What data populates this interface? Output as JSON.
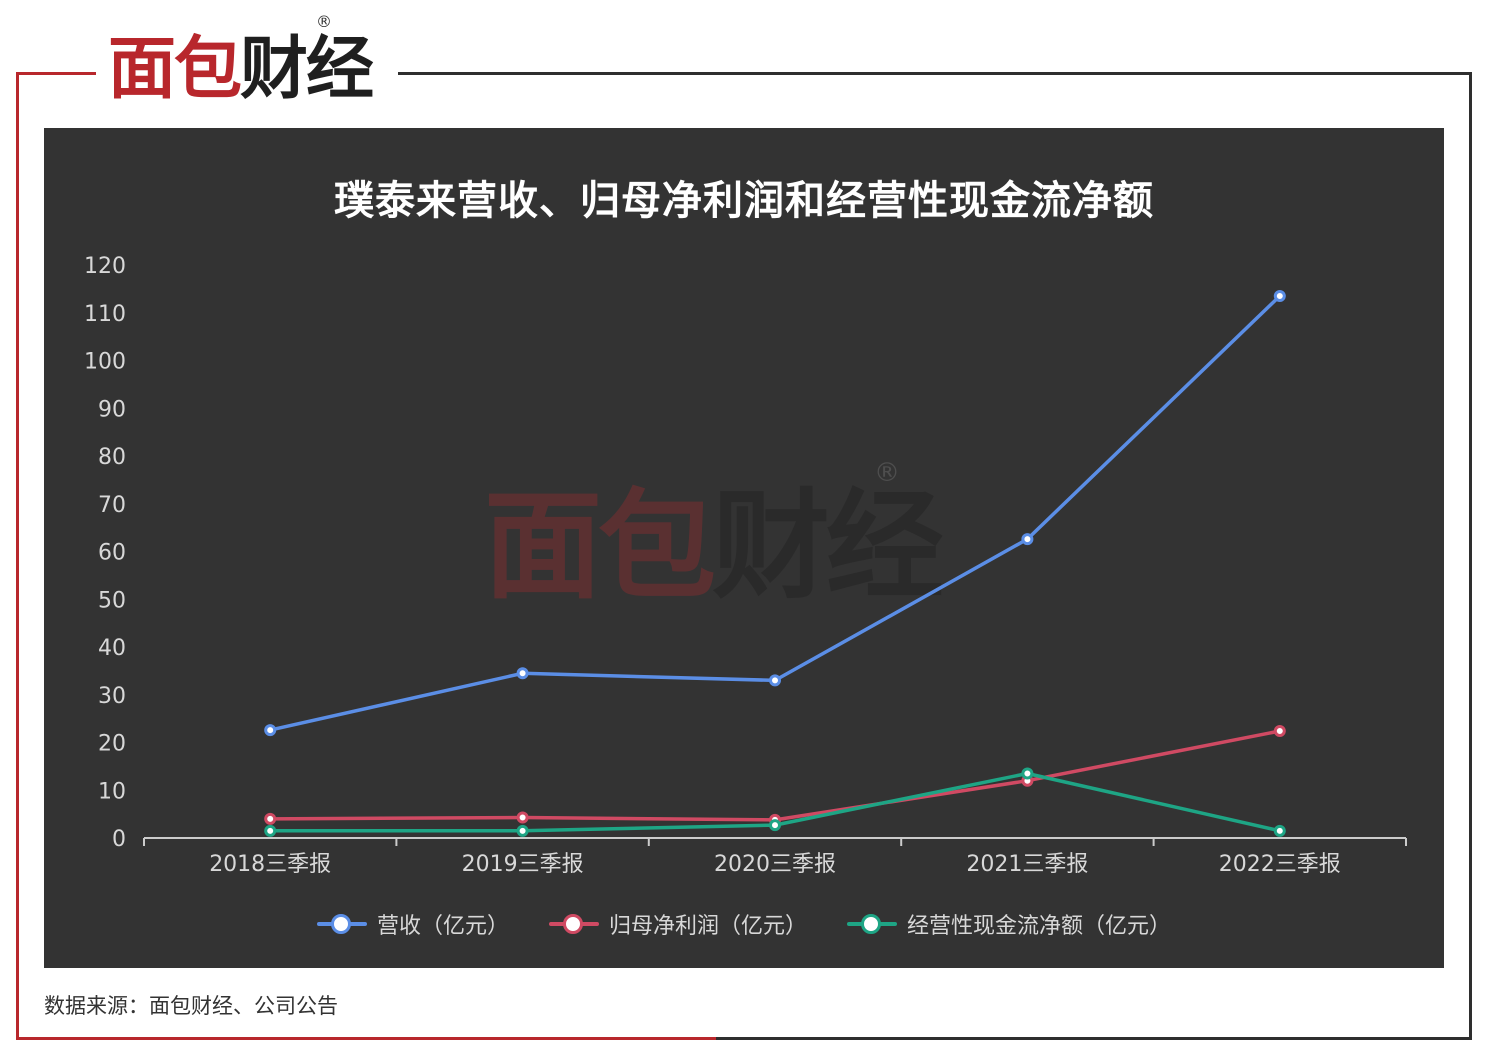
{
  "logo": {
    "part1": "面包",
    "part2": "财经",
    "reg": "®"
  },
  "watermark": {
    "part1": "面包",
    "part2": "财经",
    "reg": "®"
  },
  "source_text": "数据来源：面包财经、公司公告",
  "chart_data": {
    "type": "line",
    "title": "璞泰来营收、归母净利润和经营性现金流净额",
    "categories": [
      "2018三季报",
      "2019三季报",
      "2020三季报",
      "2021三季报",
      "2022三季报"
    ],
    "ylim": [
      0,
      120
    ],
    "yticks": [
      0,
      10,
      20,
      30,
      40,
      50,
      60,
      70,
      80,
      90,
      100,
      110,
      120
    ],
    "grid": false,
    "legend_position": "bottom",
    "series": [
      {
        "name": "营收（亿元）",
        "color": "#5b8ee6",
        "values": [
          22.6,
          34.5,
          33.0,
          62.6,
          113.5
        ]
      },
      {
        "name": "归母净利润（亿元）",
        "color": "#d04a63",
        "values": [
          4.0,
          4.3,
          3.8,
          12.0,
          22.4
        ]
      },
      {
        "name": "经营性现金流净额（亿元）",
        "color": "#1ea585",
        "values": [
          1.5,
          1.5,
          2.7,
          13.5,
          1.5
        ]
      }
    ]
  }
}
